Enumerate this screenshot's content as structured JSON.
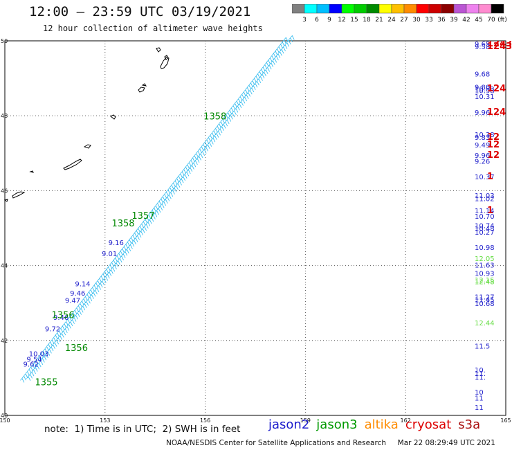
{
  "header": {
    "title": "12:00 – 23:59 UTC 03/19/2021",
    "subtitle": "12 hour collection of altimeter wave heights"
  },
  "colorbar": {
    "unit": "(ft)",
    "ticks": [
      "3",
      "6",
      "9",
      "12",
      "15",
      "18",
      "21",
      "24",
      "27",
      "30",
      "33",
      "36",
      "39",
      "42",
      "45",
      "70"
    ],
    "colors": [
      "#808080",
      "#00ffff",
      "#00bfff",
      "#0000ff",
      "#00ff00",
      "#00cd00",
      "#008b00",
      "#ffff00",
      "#ffc000",
      "#ff8c00",
      "#ff0000",
      "#cd0000",
      "#8b0000",
      "#ba55d3",
      "#ee82ee",
      "#ff8cd0",
      "#000000"
    ]
  },
  "map": {
    "lon_ticks": [
      "150",
      "153",
      "156",
      "159",
      "162",
      "165"
    ],
    "lat_ticks": [
      "40",
      "42",
      "44",
      "46",
      "48",
      "50"
    ],
    "grid": "dotted",
    "track_color": "#33bbee",
    "track_dark_color": "#2222cc",
    "coast_color": "#000000"
  },
  "track_labels": [
    {
      "text": "10.03",
      "lon": 150.72,
      "lat": 41.58,
      "color": "#2222cc"
    },
    {
      "text": "9.54",
      "lon": 150.65,
      "lat": 41.43,
      "color": "#2222cc"
    },
    {
      "text": "9.62",
      "lon": 150.55,
      "lat": 41.3,
      "color": "#2222cc"
    },
    {
      "text": "9.72",
      "lon": 151.2,
      "lat": 42.25,
      "color": "#2222cc"
    },
    {
      "text": "9.46",
      "lon": 151.45,
      "lat": 42.55,
      "color": "#2222cc"
    },
    {
      "text": "9.47",
      "lon": 151.8,
      "lat": 43.0,
      "color": "#2222cc"
    },
    {
      "text": "9.46",
      "lon": 151.95,
      "lat": 43.2,
      "color": "#2222cc"
    },
    {
      "text": "9.14",
      "lon": 152.1,
      "lat": 43.45,
      "color": "#2222cc"
    },
    {
      "text": "9.01",
      "lon": 152.9,
      "lat": 44.25,
      "color": "#2222cc"
    },
    {
      "text": "9.16",
      "lon": 153.1,
      "lat": 44.55,
      "color": "#2222cc"
    }
  ],
  "rev_labels": [
    {
      "text": "1355",
      "lon": 150.9,
      "lat": 40.8,
      "color": "#008800"
    },
    {
      "text": "1356",
      "lon": 151.8,
      "lat": 41.72,
      "color": "#008800"
    },
    {
      "text": "1357",
      "lon": 153.8,
      "lat": 45.25,
      "color": "#008800"
    },
    {
      "text": "1358",
      "lon": 153.2,
      "lat": 45.05,
      "color": "#008800"
    },
    {
      "text": "1358",
      "lon": 155.95,
      "lat": 47.9,
      "color": "#008800"
    },
    {
      "text": "1356",
      "lon": 151.4,
      "lat": 42.6,
      "color": "#008800"
    }
  ],
  "right_labels": [
    {
      "text": "9.65",
      "lat": 49.85,
      "color": "#2222cc"
    },
    {
      "text": "9.58",
      "lat": 49.78,
      "color": "#2222cc"
    },
    {
      "text": "1243",
      "lat": 49.85,
      "color": "#dd0000",
      "big": true
    },
    {
      "text": "1243",
      "lat": 49.78,
      "color": "#dd0000",
      "big": true
    },
    {
      "text": "9.68",
      "lat": 49.05,
      "color": "#2222cc"
    },
    {
      "text": "9.80",
      "lat": 48.7,
      "color": "#2222cc"
    },
    {
      "text": "10.53",
      "lat": 48.65,
      "color": "#2222cc"
    },
    {
      "text": "10.98",
      "lat": 48.6,
      "color": "#2222cc"
    },
    {
      "text": "124",
      "lat": 48.65,
      "color": "#dd0000",
      "big": true
    },
    {
      "text": "10.31",
      "lat": 48.45,
      "color": "#2222cc"
    },
    {
      "text": "9.96",
      "lat": 48.02,
      "color": "#2222cc"
    },
    {
      "text": "124",
      "lat": 48.02,
      "color": "#dd0000",
      "big": true
    },
    {
      "text": "10.38",
      "lat": 47.43,
      "color": "#2222cc"
    },
    {
      "text": "9.83",
      "lat": 47.36,
      "color": "#2222cc"
    },
    {
      "text": "12",
      "lat": 47.36,
      "color": "#dd0000",
      "big": true
    },
    {
      "text": "9.49",
      "lat": 47.15,
      "color": "#2222cc"
    },
    {
      "text": "12",
      "lat": 47.15,
      "color": "#dd0000",
      "big": true
    },
    {
      "text": "9.96",
      "lat": 46.88,
      "color": "#2222cc"
    },
    {
      "text": "12",
      "lat": 46.88,
      "color": "#dd0000",
      "big": true
    },
    {
      "text": "9.26",
      "lat": 46.72,
      "color": "#2222cc"
    },
    {
      "text": "10.37",
      "lat": 46.3,
      "color": "#2222cc"
    },
    {
      "text": "1",
      "lat": 46.3,
      "color": "#dd0000",
      "big": true
    },
    {
      "text": "11.03",
      "lat": 45.8,
      "color": "#2222cc"
    },
    {
      "text": "11.02",
      "lat": 45.72,
      "color": "#2222cc"
    },
    {
      "text": "11.14",
      "lat": 45.4,
      "color": "#2222cc"
    },
    {
      "text": "1",
      "lat": 45.4,
      "color": "#dd0000",
      "big": true
    },
    {
      "text": "10.70",
      "lat": 45.25,
      "color": "#2222cc"
    },
    {
      "text": "10.74",
      "lat": 45.0,
      "color": "#2222cc"
    },
    {
      "text": "10.48",
      "lat": 44.93,
      "color": "#2222cc"
    },
    {
      "text": "10.27",
      "lat": 44.82,
      "color": "#2222cc"
    },
    {
      "text": "10.98",
      "lat": 44.42,
      "color": "#2222cc"
    },
    {
      "text": "12.05",
      "lat": 44.12,
      "color": "#66dd44"
    },
    {
      "text": "11.63",
      "lat": 43.95,
      "color": "#2222cc"
    },
    {
      "text": "10.93",
      "lat": 43.72,
      "color": "#2222cc"
    },
    {
      "text": "12.15",
      "lat": 43.55,
      "color": "#66dd44"
    },
    {
      "text": "12.48",
      "lat": 43.5,
      "color": "#66dd44"
    },
    {
      "text": "11.27",
      "lat": 43.1,
      "color": "#2222cc"
    },
    {
      "text": "11.45",
      "lat": 43.02,
      "color": "#2222cc"
    },
    {
      "text": "10.68",
      "lat": 42.92,
      "color": "#2222cc"
    },
    {
      "text": "12.44",
      "lat": 42.4,
      "color": "#66dd44"
    },
    {
      "text": "11.5",
      "lat": 41.78,
      "color": "#2222cc"
    },
    {
      "text": "10.",
      "lat": 41.15,
      "color": "#2222cc"
    },
    {
      "text": "11.",
      "lat": 41.05,
      "color": "#2222cc"
    },
    {
      "text": "11.",
      "lat": 40.95,
      "color": "#2222cc"
    },
    {
      "text": "10",
      "lat": 40.55,
      "color": "#2222cc"
    },
    {
      "text": "11",
      "lat": 40.4,
      "color": "#2222cc"
    },
    {
      "text": "11",
      "lat": 40.15,
      "color": "#2222cc"
    }
  ],
  "note": "note:  1) Time is in UTC;  2) SWH is in feet",
  "legend": [
    {
      "name": "jason2",
      "color": "#1a1acc"
    },
    {
      "name": "jason3",
      "color": "#009900"
    },
    {
      "name": "altika",
      "color": "#ff8c00"
    },
    {
      "name": "cryosat",
      "color": "#dd0000"
    },
    {
      "name": "s3a",
      "color": "#aa1111"
    }
  ],
  "footer": "NOAA/NESDIS Center for Satellite Applications and Research     Mar 22 08:29:49 UTC 2021"
}
